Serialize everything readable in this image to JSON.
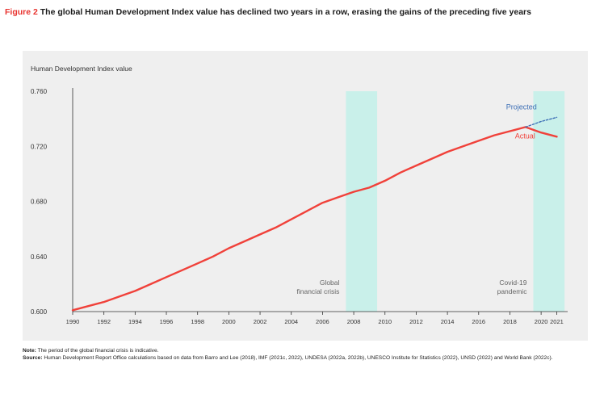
{
  "figure": {
    "label": "Figure 2",
    "title": "The global Human Development Index value has declined two years in a row, erasing the gains of the preceding five years"
  },
  "notes": {
    "note_label": "Note:",
    "note_text": "The period of the global financial crisis is indicative.",
    "source_label": "Source:",
    "source_text": "Human Development Report Office calculations based on data from Barro and Lee (2018), IMF (2021c, 2022), UNDESA (2022a, 2022b), UNESCO Institute for Statistics (2022), UNSD (2022) and World Bank (2022c)."
  },
  "colors": {
    "actual": "#f0413a",
    "projected": "#3d6fb6",
    "shade": "#c9f0ea",
    "panel": "#efefef",
    "label": "#e8332f"
  },
  "chart_data": {
    "type": "line",
    "ylabel": "Human Development Index value",
    "xlabel": "",
    "ylim": [
      0.6,
      0.76
    ],
    "yticks": [
      "0.600",
      "0.640",
      "0.680",
      "0.720",
      "0.760"
    ],
    "xlim": [
      1990,
      2021
    ],
    "xticks": [
      "1990",
      "1992",
      "1994",
      "1996",
      "1998",
      "2000",
      "2002",
      "2004",
      "2006",
      "2008",
      "2010",
      "2012",
      "2014",
      "2016",
      "2018",
      "2020",
      "2021"
    ],
    "grid": false,
    "series": [
      {
        "name": "Actual",
        "style": "solid",
        "x": [
          1990,
          1991,
          1992,
          1993,
          1994,
          1995,
          1996,
          1997,
          1998,
          1999,
          2000,
          2001,
          2002,
          2003,
          2004,
          2005,
          2006,
          2007,
          2008,
          2009,
          2010,
          2011,
          2012,
          2013,
          2014,
          2015,
          2016,
          2017,
          2018,
          2019,
          2020,
          2021
        ],
        "values": [
          0.601,
          0.604,
          0.607,
          0.611,
          0.615,
          0.62,
          0.625,
          0.63,
          0.635,
          0.64,
          0.646,
          0.651,
          0.656,
          0.661,
          0.667,
          0.673,
          0.679,
          0.683,
          0.687,
          0.69,
          0.695,
          0.701,
          0.706,
          0.711,
          0.716,
          0.72,
          0.724,
          0.728,
          0.731,
          0.734,
          0.73,
          0.727
        ]
      },
      {
        "name": "Projected",
        "style": "dotted",
        "x": [
          2019,
          2020,
          2021
        ],
        "values": [
          0.734,
          0.738,
          0.741
        ]
      }
    ],
    "shaded_regions": [
      {
        "label": "Global financial crisis",
        "lines": [
          "Global",
          "financial crisis"
        ],
        "x_start": 2007.5,
        "x_end": 2009.5
      },
      {
        "label": "Covid-19 pandemic",
        "lines": [
          "Covid-19",
          "pandemic"
        ],
        "x_start": 2019.5,
        "x_end": 2021.5
      }
    ]
  }
}
